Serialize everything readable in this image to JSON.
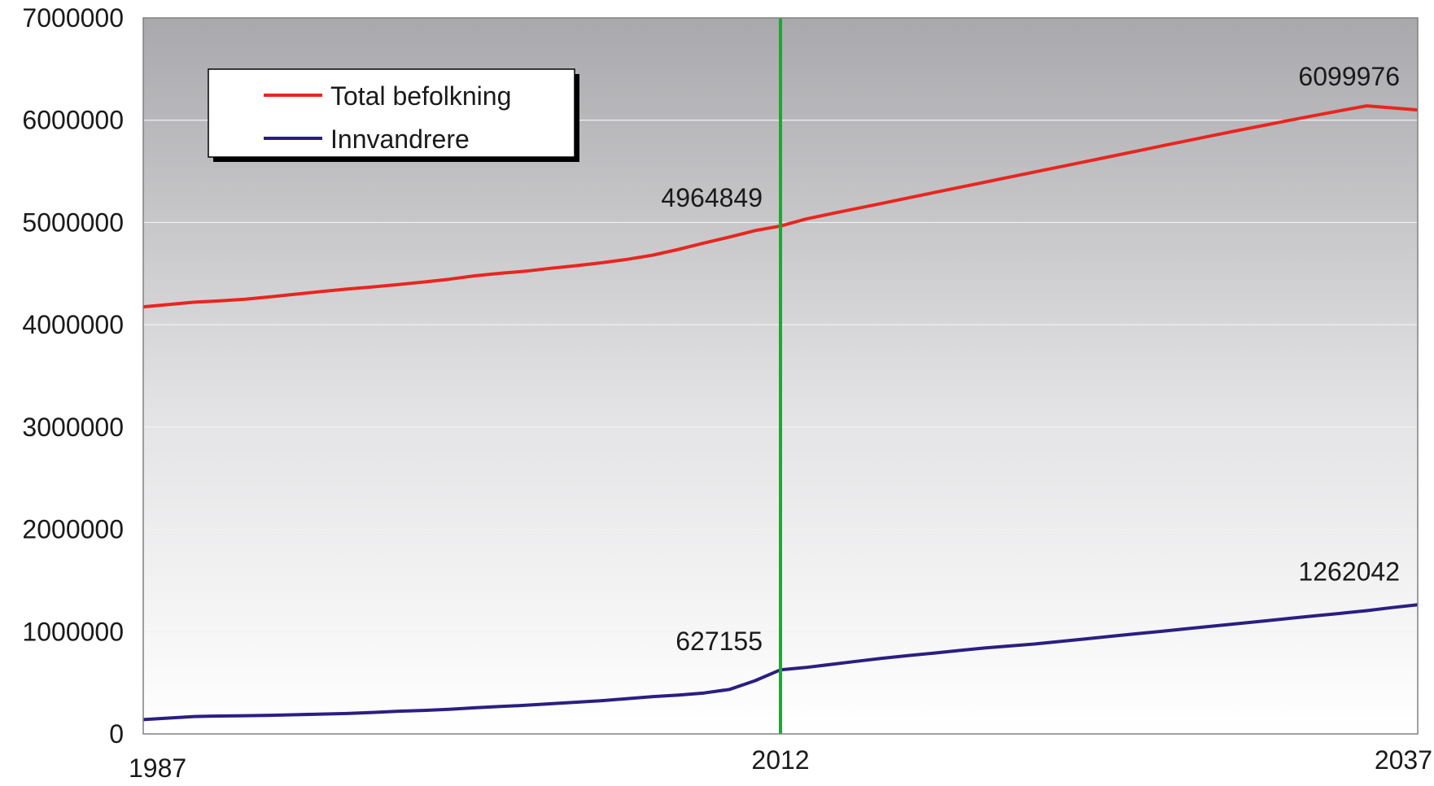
{
  "chart_data": {
    "type": "line",
    "title": "",
    "xlabel": "",
    "ylabel": "",
    "xlim": [
      1987,
      2037
    ],
    "ylim": [
      0,
      7000000
    ],
    "yticks": [
      "0",
      "1000000",
      "2000000",
      "3000000",
      "4000000",
      "5000000",
      "6000000",
      "7000000"
    ],
    "xticks": [
      "1987",
      "2012",
      "2037"
    ],
    "grid": true,
    "legend_position": "top-left",
    "vertical_marker": {
      "x": 2012,
      "color": "#22a534"
    },
    "x": [
      1987,
      1988,
      1989,
      1990,
      1991,
      1992,
      1993,
      1994,
      1995,
      1996,
      1997,
      1998,
      1999,
      2000,
      2001,
      2002,
      2003,
      2004,
      2005,
      2006,
      2007,
      2008,
      2009,
      2010,
      2011,
      2012,
      2013,
      2014,
      2015,
      2016,
      2017,
      2018,
      2019,
      2020,
      2021,
      2022,
      2023,
      2024,
      2025,
      2026,
      2027,
      2028,
      2029,
      2030,
      2031,
      2032,
      2033,
      2034,
      2035,
      2036,
      2037
    ],
    "series": [
      {
        "name": "Total befolkning",
        "color": "#e8261f",
        "values": [
          4175521,
          4198289,
          4220686,
          4233116,
          4249830,
          4273634,
          4299167,
          4324815,
          4348410,
          4369957,
          4392714,
          4417599,
          4445329,
          4478497,
          4503436,
          4524066,
          4552252,
          4577457,
          4606363,
          4640219,
          4681134,
          4737171,
          4799252,
          4858199,
          4920305,
          4964849,
          5034000,
          5086000,
          5137000,
          5188000,
          5240000,
          5291000,
          5342000,
          5393000,
          5444000,
          5495000,
          5546000,
          5597000,
          5648000,
          5699000,
          5750000,
          5801000,
          5852000,
          5902000,
          5951000,
          6000000,
          6048000,
          6095000,
          6140000,
          6120000,
          6099976
        ],
        "labels": [
          {
            "x": 2012,
            "value": 4964849,
            "text": "4964849"
          },
          {
            "x": 2037,
            "value": 6099976,
            "text": "6099976"
          }
        ]
      },
      {
        "name": "Innvandrere",
        "color": "#2b1e82",
        "values": [
          140000,
          155000,
          170000,
          175000,
          178000,
          182000,
          188000,
          194000,
          200000,
          210000,
          222000,
          230000,
          240000,
          255000,
          268000,
          280000,
          295000,
          310000,
          325000,
          345000,
          365000,
          380000,
          400000,
          435000,
          520000,
          627155,
          650000,
          680000,
          710000,
          740000,
          765000,
          790000,
          815000,
          840000,
          860000,
          880000,
          905000,
          930000,
          955000,
          980000,
          1005000,
          1030000,
          1055000,
          1080000,
          1105000,
          1130000,
          1155000,
          1180000,
          1205000,
          1235000,
          1262042
        ],
        "labels": [
          {
            "x": 2012,
            "value": 627155,
            "text": "627155"
          },
          {
            "x": 2037,
            "value": 1262042,
            "text": "1262042"
          }
        ]
      }
    ]
  }
}
